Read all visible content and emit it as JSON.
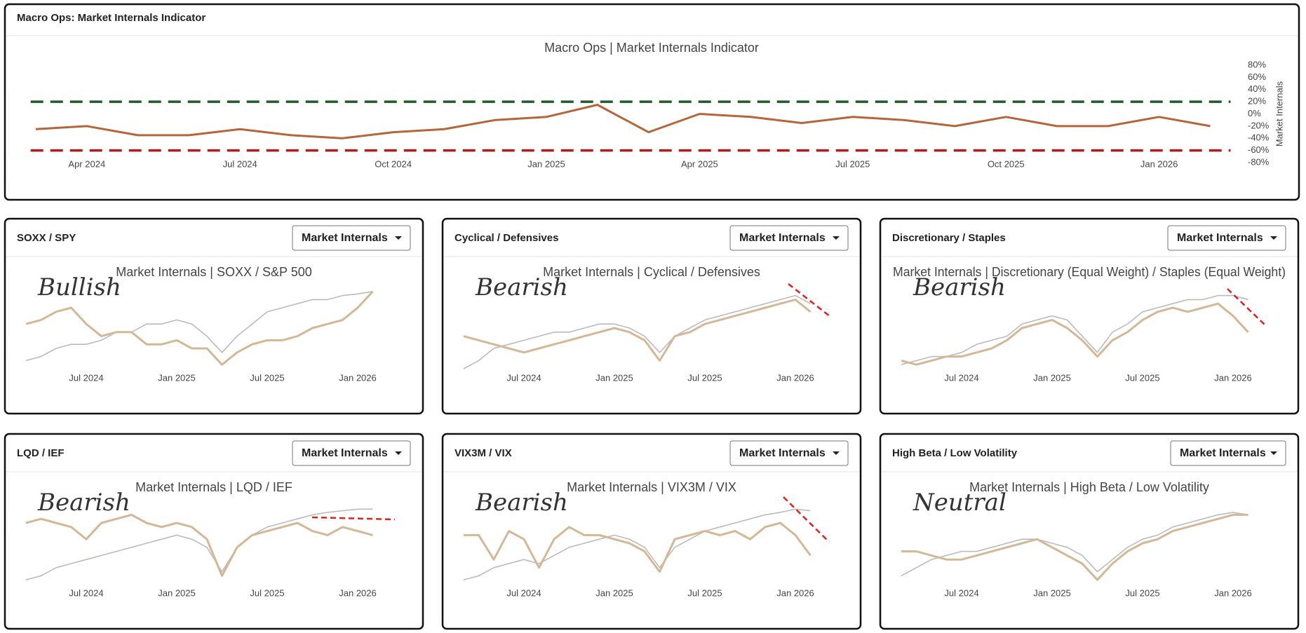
{
  "chart_data": [
    {
      "type": "line",
      "panel_title": "Macro Ops: Market Internals Indicator",
      "title": "Macro Ops | Market Internals Indicator",
      "y_label": "Market Internals",
      "x": [
        "Mar 2024",
        "Apr 2024",
        "May 2024",
        "Jun 2024",
        "Jul 2024",
        "Aug 2024",
        "Sep 2024",
        "Oct 2024",
        "Nov 2024",
        "Dec 2024",
        "Jan 2025",
        "Feb 2025",
        "Mar 2025",
        "Apr 2025",
        "May 2025",
        "Jun 2025",
        "Jul 2025",
        "Aug 2025",
        "Sep 2025",
        "Oct 2025",
        "Nov 2025",
        "Dec 2025",
        "Jan 2026",
        "Feb 2026"
      ],
      "xticks": [
        "Apr 2024",
        "Jul 2024",
        "Oct 2024",
        "Jan 2025",
        "Apr 2025",
        "Jul 2025",
        "Oct 2025",
        "Jan 2026"
      ],
      "ylim": [
        -80,
        80
      ],
      "yticks": [
        {
          "value": 80,
          "label": "80%"
        },
        {
          "value": 60,
          "label": "60%"
        },
        {
          "value": 40,
          "label": "40%"
        },
        {
          "value": 20,
          "label": "20%"
        },
        {
          "value": 0,
          "label": "0%"
        },
        {
          "value": -20,
          "label": "-20%"
        },
        {
          "value": -40,
          "label": "-40%"
        },
        {
          "value": -60,
          "label": "-60%"
        },
        {
          "value": -80,
          "label": "-80%"
        }
      ],
      "reference_lines": [
        {
          "value": 20,
          "color": "#1e5c2a"
        },
        {
          "value": -60,
          "color": "#b01c1c"
        }
      ],
      "series": [
        {
          "color": "#b5653a",
          "values": [
            -25,
            -20,
            -35,
            -35,
            -25,
            -35,
            -40,
            -30,
            -25,
            -10,
            -5,
            15,
            -30,
            0,
            -5,
            -15,
            -5,
            -10,
            -20,
            -5,
            -20,
            -20,
            -5,
            -20
          ]
        }
      ]
    },
    {
      "type": "line",
      "panel_title": "SOXX / SPY",
      "dropdown": "Market Internals",
      "title": "Market Internals | SOXX / S&P 500",
      "annotation": "Bullish",
      "annotation_color": "#22bb22",
      "x": [
        "Mar 2024",
        "Apr 2024",
        "May 2024",
        "Jun 2024",
        "Jul 2024",
        "Aug 2024",
        "Sep 2024",
        "Oct 2024",
        "Nov 2024",
        "Dec 2024",
        "Jan 2025",
        "Feb 2025",
        "Mar 2025",
        "Apr 2025",
        "May 2025",
        "Jun 2025",
        "Jul 2025",
        "Aug 2025",
        "Sep 2025",
        "Oct 2025",
        "Nov 2025",
        "Dec 2025",
        "Jan 2026",
        "Feb 2026"
      ],
      "xticks": [
        "Jul 2024",
        "Jan 2025",
        "Jul 2025",
        "Jan 2026"
      ],
      "ylim": [
        0,
        100
      ],
      "series": [
        {
          "color": "#bbbbbb",
          "values": [
            10,
            15,
            25,
            30,
            30,
            35,
            45,
            45,
            55,
            55,
            60,
            55,
            40,
            20,
            40,
            55,
            70,
            75,
            80,
            85,
            85,
            90,
            92,
            95
          ]
        },
        {
          "color": "#d4b896",
          "values": [
            55,
            60,
            70,
            75,
            55,
            40,
            45,
            45,
            30,
            30,
            35,
            25,
            25,
            5,
            20,
            30,
            35,
            35,
            40,
            50,
            55,
            60,
            75,
            95
          ]
        }
      ]
    },
    {
      "type": "line",
      "panel_title": "Cyclical / Defensives",
      "dropdown": "Market Internals",
      "title": "Market Internals | Cyclical / Defensives",
      "annotation": "Bearish",
      "annotation_color": "#e8202a",
      "x": [
        "Mar 2024",
        "Apr 2024",
        "May 2024",
        "Jun 2024",
        "Jul 2024",
        "Aug 2024",
        "Sep 2024",
        "Oct 2024",
        "Nov 2024",
        "Dec 2024",
        "Jan 2025",
        "Feb 2025",
        "Mar 2025",
        "Apr 2025",
        "May 2025",
        "Jun 2025",
        "Jul 2025",
        "Aug 2025",
        "Sep 2025",
        "Oct 2025",
        "Nov 2025",
        "Dec 2025",
        "Jan 2026",
        "Feb 2026"
      ],
      "xticks": [
        "Jul 2024",
        "Jan 2025",
        "Jul 2025",
        "Jan 2026"
      ],
      "ylim": [
        0,
        100
      ],
      "series": [
        {
          "color": "#bbbbbb",
          "values": [
            0,
            10,
            25,
            30,
            35,
            40,
            45,
            45,
            50,
            55,
            55,
            50,
            40,
            20,
            40,
            50,
            60,
            65,
            70,
            75,
            80,
            85,
            90,
            80
          ]
        },
        {
          "color": "#d4b896",
          "values": [
            40,
            35,
            30,
            25,
            20,
            25,
            30,
            35,
            40,
            45,
            50,
            45,
            35,
            10,
            40,
            45,
            55,
            60,
            65,
            70,
            75,
            80,
            85,
            70
          ]
        }
      ]
    },
    {
      "type": "line",
      "panel_title": "Discretionary / Staples",
      "dropdown": "Market Internals",
      "title": "Market Internals | Discretionary (Equal Weight) / Staples (Equal Weight)",
      "annotation": "Bearish",
      "annotation_color": "#e8202a",
      "x": [
        "Mar 2024",
        "Apr 2024",
        "May 2024",
        "Jun 2024",
        "Jul 2024",
        "Aug 2024",
        "Sep 2024",
        "Oct 2024",
        "Nov 2024",
        "Dec 2024",
        "Jan 2025",
        "Feb 2025",
        "Mar 2025",
        "Apr 2025",
        "May 2025",
        "Jun 2025",
        "Jul 2025",
        "Aug 2025",
        "Sep 2025",
        "Oct 2025",
        "Nov 2025",
        "Dec 2025",
        "Jan 2026",
        "Feb 2026"
      ],
      "xticks": [
        "Jul 2024",
        "Jan 2025",
        "Jul 2025",
        "Jan 2026"
      ],
      "ylim": [
        0,
        100
      ],
      "series": [
        {
          "color": "#bbbbbb",
          "values": [
            5,
            10,
            15,
            15,
            20,
            30,
            35,
            40,
            55,
            60,
            65,
            60,
            40,
            20,
            45,
            55,
            70,
            75,
            80,
            85,
            85,
            90,
            90,
            85
          ]
        },
        {
          "color": "#d4b896",
          "values": [
            10,
            5,
            10,
            15,
            15,
            20,
            25,
            35,
            50,
            55,
            60,
            50,
            35,
            15,
            35,
            45,
            60,
            70,
            75,
            70,
            75,
            80,
            65,
            45
          ]
        }
      ]
    },
    {
      "type": "line",
      "panel_title": "LQD / IEF",
      "dropdown": "Market Internals",
      "title": "Market Internals | LQD / IEF",
      "annotation": "Bearish",
      "annotation_color": "#e8202a",
      "x": [
        "Mar 2024",
        "Apr 2024",
        "May 2024",
        "Jun 2024",
        "Jul 2024",
        "Aug 2024",
        "Sep 2024",
        "Oct 2024",
        "Nov 2024",
        "Dec 2024",
        "Jan 2025",
        "Feb 2025",
        "Mar 2025",
        "Apr 2025",
        "May 2025",
        "Jun 2025",
        "Jul 2025",
        "Aug 2025",
        "Sep 2025",
        "Oct 2025",
        "Nov 2025",
        "Dec 2025",
        "Jan 2026",
        "Feb 2026"
      ],
      "xticks": [
        "Jul 2024",
        "Jan 2025",
        "Jul 2025",
        "Jan 2026"
      ],
      "ylim": [
        0,
        100
      ],
      "series": [
        {
          "color": "#bbbbbb",
          "values": [
            5,
            10,
            20,
            25,
            30,
            35,
            40,
            45,
            50,
            55,
            60,
            55,
            45,
            15,
            45,
            60,
            70,
            75,
            80,
            85,
            88,
            90,
            92,
            92
          ]
        },
        {
          "color": "#d4b896",
          "values": [
            75,
            80,
            75,
            70,
            55,
            75,
            80,
            85,
            75,
            70,
            75,
            70,
            55,
            10,
            45,
            60,
            65,
            70,
            75,
            65,
            60,
            70,
            65,
            60
          ]
        }
      ]
    },
    {
      "type": "line",
      "panel_title": "VIX3M / VIX",
      "dropdown": "Market Internals",
      "title": "Market Internals | VIX3M / VIX",
      "annotation": "Bearish",
      "annotation_color": "#e8202a",
      "x": [
        "Mar 2024",
        "Apr 2024",
        "May 2024",
        "Jun 2024",
        "Jul 2024",
        "Aug 2024",
        "Sep 2024",
        "Oct 2024",
        "Nov 2024",
        "Dec 2024",
        "Jan 2025",
        "Feb 2025",
        "Mar 2025",
        "Apr 2025",
        "May 2025",
        "Jun 2025",
        "Jul 2025",
        "Aug 2025",
        "Sep 2025",
        "Oct 2025",
        "Nov 2025",
        "Dec 2025",
        "Jan 2026",
        "Feb 2026"
      ],
      "xticks": [
        "Jul 2024",
        "Jan 2025",
        "Jul 2025",
        "Jan 2026"
      ],
      "ylim": [
        0,
        100
      ],
      "series": [
        {
          "color": "#bbbbbb",
          "values": [
            5,
            10,
            20,
            25,
            30,
            25,
            35,
            45,
            50,
            55,
            60,
            55,
            45,
            20,
            45,
            55,
            65,
            70,
            75,
            80,
            85,
            88,
            92,
            90
          ]
        },
        {
          "color": "#d4b896",
          "values": [
            60,
            60,
            30,
            65,
            55,
            20,
            55,
            70,
            60,
            60,
            55,
            50,
            40,
            15,
            55,
            60,
            65,
            60,
            65,
            55,
            70,
            75,
            60,
            35
          ]
        }
      ]
    },
    {
      "type": "line",
      "panel_title": "High Beta / Low Volatility",
      "dropdown": "Market Internals",
      "title": "Market Internals | High Beta / Low Volatility",
      "annotation": "Neutral",
      "annotation_color": "#e8621a",
      "x": [
        "Mar 2024",
        "Apr 2024",
        "May 2024",
        "Jun 2024",
        "Jul 2024",
        "Aug 2024",
        "Sep 2024",
        "Oct 2024",
        "Nov 2024",
        "Dec 2024",
        "Jan 2025",
        "Feb 2025",
        "Mar 2025",
        "Apr 2025",
        "May 2025",
        "Jun 2025",
        "Jul 2025",
        "Aug 2025",
        "Sep 2025",
        "Oct 2025",
        "Nov 2025",
        "Dec 2025",
        "Jan 2026",
        "Feb 2026"
      ],
      "xticks": [
        "Jul 2024",
        "Jan 2025",
        "Jul 2025",
        "Jan 2026"
      ],
      "ylim": [
        0,
        100
      ],
      "series": [
        {
          "color": "#bbbbbb",
          "values": [
            10,
            20,
            30,
            35,
            40,
            40,
            45,
            50,
            55,
            55,
            50,
            45,
            35,
            15,
            30,
            45,
            55,
            60,
            70,
            75,
            80,
            85,
            88,
            85
          ]
        },
        {
          "color": "#d4b896",
          "values": [
            40,
            40,
            35,
            30,
            30,
            35,
            40,
            45,
            50,
            55,
            45,
            35,
            25,
            5,
            25,
            40,
            50,
            55,
            65,
            70,
            75,
            80,
            85,
            85
          ]
        }
      ]
    }
  ]
}
